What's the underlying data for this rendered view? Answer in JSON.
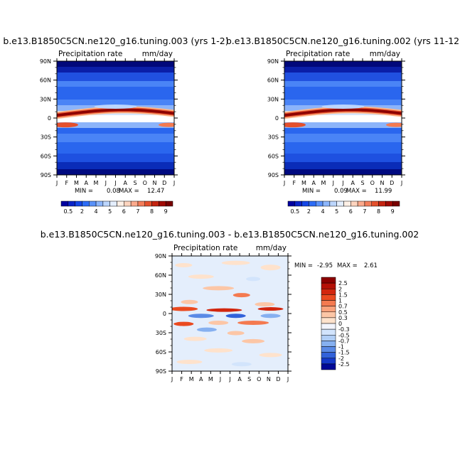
{
  "chart_data": [
    {
      "type": "heatmap",
      "title": "b.e13.B1850C5CN.ne120_g16.tuning.003 (yrs 1-2)",
      "variable_label": "Precipitation rate",
      "units": "mm/day",
      "x": [
        "J",
        "F",
        "M",
        "A",
        "M",
        "J",
        "J",
        "A",
        "S",
        "O",
        "N",
        "D",
        "J"
      ],
      "y": [
        "90N",
        "60N",
        "30N",
        "0",
        "30S",
        "60S",
        "90S"
      ],
      "stats": {
        "min_label": "MIN =",
        "min": "0.08",
        "max_label": "MAX =",
        "max": "12.47"
      },
      "colorbar": {
        "orientation": "horizontal",
        "labels": [
          "0.5",
          "2",
          "4",
          "5",
          "6",
          "7",
          "8",
          "9"
        ],
        "colors": [
          "#0000a0",
          "#0a24c8",
          "#1446e6",
          "#2c6cf6",
          "#5a92fa",
          "#8cb6fc",
          "#bcd6fe",
          "#e4eefe",
          "#fff0e6",
          "#fed4be",
          "#fcaa8c",
          "#f47e5a",
          "#e4502c",
          "#c42410",
          "#a00a04",
          "#780000"
        ]
      }
    },
    {
      "type": "heatmap",
      "title": "b.e13.B1850C5CN.ne120_g16.tuning.002 (yrs 11-12",
      "variable_label": "Precipitation rate",
      "units": "mm/day",
      "x": [
        "J",
        "F",
        "M",
        "A",
        "M",
        "J",
        "J",
        "A",
        "S",
        "O",
        "N",
        "D",
        "J"
      ],
      "y": [
        "90N",
        "60N",
        "30N",
        "0",
        "30S",
        "60S",
        "90S"
      ],
      "stats": {
        "min_label": "MIN =",
        "min": "0.09",
        "max_label": "MAX =",
        "max": "11.99"
      },
      "colorbar": {
        "orientation": "horizontal",
        "labels": [
          "0.5",
          "2",
          "4",
          "5",
          "6",
          "7",
          "8",
          "9"
        ],
        "colors": [
          "#0000a0",
          "#0a24c8",
          "#1446e6",
          "#2c6cf6",
          "#5a92fa",
          "#8cb6fc",
          "#bcd6fe",
          "#e4eefe",
          "#fff0e6",
          "#fed4be",
          "#fcaa8c",
          "#f47e5a",
          "#e4502c",
          "#c42410",
          "#a00a04",
          "#780000"
        ]
      }
    },
    {
      "type": "heatmap",
      "title": "b.e13.B1850C5CN.ne120_g16.tuning.003 - b.e13.B1850C5CN.ne120_g16.tuning.002",
      "variable_label": "Precipitation rate",
      "units": "mm/day",
      "x": [
        "J",
        "F",
        "M",
        "A",
        "M",
        "J",
        "J",
        "A",
        "S",
        "O",
        "N",
        "D",
        "J"
      ],
      "y": [
        "90N",
        "60N",
        "30N",
        "0",
        "30S",
        "60S",
        "90S"
      ],
      "stats": {
        "min_label": "MIN =",
        "min": "-2.95",
        "max_label": "MAX =",
        "max": "2.61"
      },
      "colorbar": {
        "orientation": "vertical",
        "labels": [
          "2.5",
          "2",
          "1.5",
          "1",
          "0.7",
          "0.5",
          "0.3",
          "0",
          "-0.3",
          "-0.5",
          "-0.7",
          "-1",
          "-1.5",
          "-2",
          "-2.5"
        ],
        "colors": [
          "#8c0000",
          "#b41006",
          "#d2260e",
          "#ea4a20",
          "#f47a50",
          "#faa27c",
          "#fcc6a6",
          "#fee2cc",
          "#f2f4fc",
          "#d2e4fc",
          "#b0cef6",
          "#86b0f0",
          "#5a8ae6",
          "#3262da",
          "#1438c8",
          "#000896"
        ]
      }
    }
  ]
}
